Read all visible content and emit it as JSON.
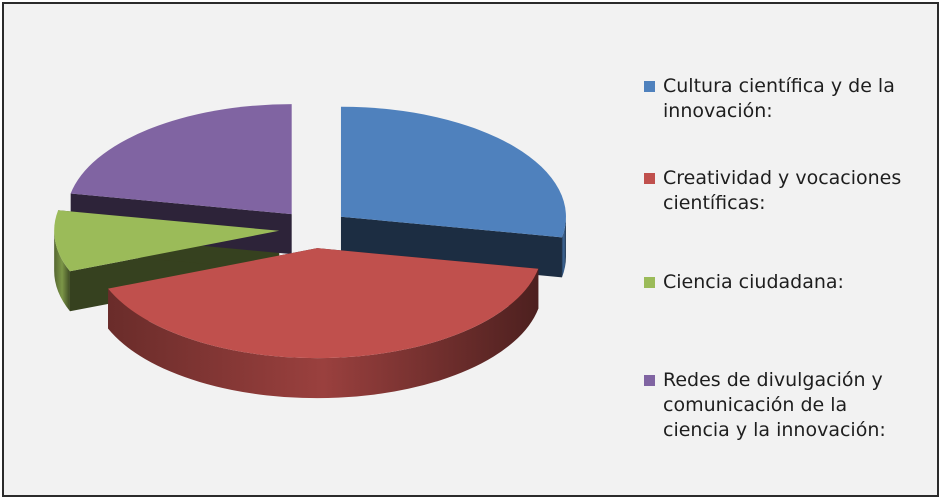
{
  "chart_data": {
    "type": "pie",
    "title": "",
    "style": "3d-exploded",
    "legend_position": "right",
    "series": [
      {
        "name": "Cultura científica y de la\ninnovación:",
        "value": 28,
        "color": "#4f81bd"
      },
      {
        "name": "Creatividad y vocaciones\ncientíficas:",
        "value": 41,
        "color": "#c0504d"
      },
      {
        "name": "Ciencia ciudadana:",
        "value": 9,
        "color": "#9bbb59"
      },
      {
        "name": "Redes de divulgación y\ncomunicación de la\nciencia y la innovación:",
        "value": 22,
        "color": "#8064a2"
      }
    ]
  }
}
